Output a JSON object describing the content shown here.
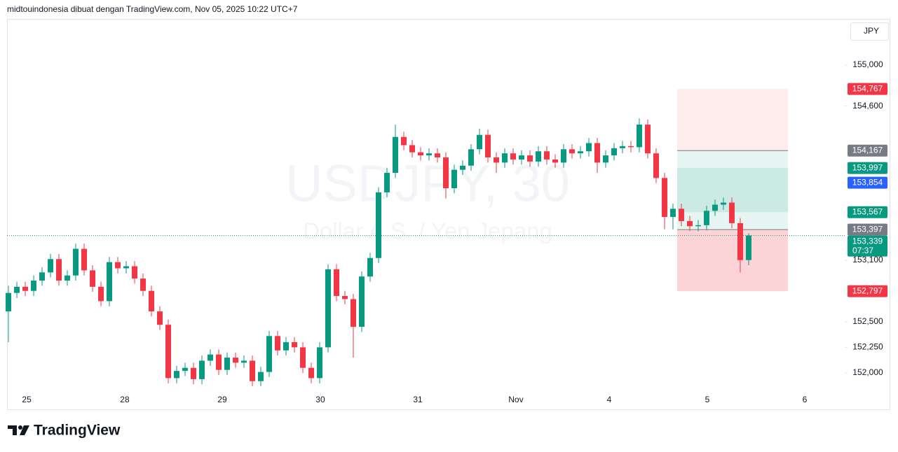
{
  "header": {
    "attribution": "midtouindonesia dibuat dengan TradingView.com, Nov 05, 2025 10:22 UTC+7",
    "currency": "JPY"
  },
  "footer": {
    "brand": "TradingView"
  },
  "chart_data": {
    "type": "candlestick",
    "title": "USDJPY, 30",
    "subtitle": "Dollar A.S. / Yen Jepang",
    "up_color": "#089981",
    "down_color": "#f23645",
    "open": [
      152.6,
      152.78,
      152.84,
      152.8,
      152.9,
      152.98,
      153.11,
      152.9,
      152.95,
      153.21,
      153.0,
      152.84,
      152.7,
      153.08,
      153.02,
      153.04,
      152.92,
      152.8,
      152.6,
      152.47,
      151.95,
      152.02,
      152.05,
      151.94,
      152.12,
      152.18,
      152.03,
      152.15,
      152.1,
      152.12,
      151.92,
      152.01,
      152.36,
      152.22,
      152.3,
      152.25,
      152.05,
      151.95,
      152.25,
      153.01,
      152.75,
      152.72,
      152.45,
      152.94,
      153.12,
      153.76,
      153.95,
      154.3,
      154.22,
      154.15,
      154.12,
      154.14,
      154.1,
      153.8,
      153.98,
      154.02,
      154.18,
      154.32,
      154.1,
      154.05,
      154.14,
      154.08,
      154.12,
      154.06,
      154.16,
      154.08,
      154.05,
      154.18,
      154.14,
      154.16,
      154.24,
      154.05,
      154.12,
      154.19,
      154.21,
      154.2,
      154.42,
      154.14,
      153.9,
      153.52,
      153.6,
      153.48,
      153.43,
      153.44,
      153.58,
      153.64,
      153.66,
      153.46,
      153.1
    ],
    "high": [
      152.85,
      152.89,
      152.89,
      152.95,
      153.03,
      153.16,
      153.16,
      153.0,
      153.26,
      153.26,
      153.05,
      152.89,
      153.13,
      153.13,
      153.09,
      153.09,
      152.97,
      152.85,
      152.65,
      152.52,
      152.07,
      152.1,
      152.1,
      152.17,
      152.23,
      152.23,
      152.2,
      152.2,
      152.17,
      152.17,
      152.06,
      152.41,
      152.41,
      152.35,
      152.35,
      152.3,
      152.1,
      152.3,
      153.06,
      153.06,
      152.8,
      152.77,
      152.99,
      153.17,
      153.81,
      154.0,
      154.42,
      154.35,
      154.27,
      154.2,
      154.19,
      154.19,
      154.15,
      154.03,
      154.07,
      154.23,
      154.38,
      154.37,
      154.15,
      154.19,
      154.19,
      154.17,
      154.17,
      154.21,
      154.21,
      154.13,
      154.23,
      154.23,
      154.21,
      154.29,
      154.29,
      154.17,
      154.24,
      154.26,
      154.26,
      154.48,
      154.47,
      154.19,
      153.95,
      153.65,
      153.65,
      153.53,
      153.49,
      153.63,
      153.69,
      153.71,
      153.71,
      153.51,
      153.36
    ],
    "low": [
      152.3,
      152.73,
      152.75,
      152.75,
      152.85,
      152.93,
      152.85,
      152.85,
      152.9,
      152.95,
      152.79,
      152.65,
      152.65,
      152.97,
      152.97,
      152.87,
      152.75,
      152.55,
      152.42,
      151.9,
      151.9,
      151.97,
      151.89,
      151.89,
      152.07,
      151.98,
      151.98,
      152.05,
      152.05,
      151.87,
      151.87,
      151.96,
      152.17,
      152.17,
      152.2,
      152.0,
      151.9,
      151.9,
      152.2,
      152.7,
      152.67,
      152.15,
      152.4,
      152.89,
      153.07,
      153.71,
      153.9,
      154.17,
      154.1,
      154.07,
      154.07,
      154.05,
      153.7,
      153.75,
      153.93,
      153.97,
      154.13,
      154.05,
      153.95,
      154.0,
      154.03,
      154.03,
      154.01,
      154.01,
      154.03,
      154.0,
      154.0,
      154.09,
      154.09,
      154.11,
      153.95,
      154.0,
      154.07,
      154.14,
      154.15,
      154.15,
      154.09,
      153.85,
      153.4,
      153.4,
      153.43,
      153.38,
      153.38,
      153.39,
      153.53,
      153.59,
      153.41,
      152.98,
      153.05
    ],
    "close": [
      152.78,
      152.84,
      152.8,
      152.9,
      152.98,
      153.11,
      152.9,
      152.95,
      153.21,
      153.0,
      152.84,
      152.7,
      153.08,
      153.02,
      153.04,
      152.92,
      152.8,
      152.6,
      152.47,
      151.95,
      152.02,
      152.05,
      151.94,
      152.12,
      152.18,
      152.03,
      152.15,
      152.1,
      152.12,
      151.92,
      152.01,
      152.36,
      152.22,
      152.3,
      152.25,
      152.05,
      151.95,
      152.25,
      153.01,
      152.75,
      152.72,
      152.45,
      152.94,
      153.12,
      153.76,
      153.95,
      154.3,
      154.22,
      154.15,
      154.12,
      154.14,
      154.1,
      153.8,
      153.98,
      154.02,
      154.18,
      154.32,
      154.1,
      154.05,
      154.14,
      154.08,
      154.12,
      154.06,
      154.16,
      154.08,
      154.05,
      154.18,
      154.14,
      154.16,
      154.24,
      154.05,
      154.12,
      154.19,
      154.21,
      154.2,
      154.42,
      154.14,
      153.9,
      153.52,
      153.6,
      153.48,
      153.43,
      153.44,
      153.58,
      153.64,
      153.66,
      153.46,
      153.1,
      153.339
    ],
    "xlim": [
      -0.17,
      99.42
    ],
    "xticks": [
      {
        "value": 2.17,
        "label": "25"
      },
      {
        "value": 13.83,
        "label": "28"
      },
      {
        "value": 25.42,
        "label": "29"
      },
      {
        "value": 37.08,
        "label": "30"
      },
      {
        "value": 48.67,
        "label": "31"
      },
      {
        "value": 60.33,
        "label": "Nov"
      },
      {
        "value": 71.42,
        "label": "4"
      },
      {
        "value": 83.08,
        "label": "5"
      },
      {
        "value": 94.67,
        "label": "6"
      }
    ],
    "ylim": [
      151.83,
      155.45
    ],
    "yticks": [
      {
        "value": 155,
        "label": "155,000"
      },
      {
        "value": 154.6,
        "label": "154,600"
      },
      {
        "value": 153.1,
        "label": "153,100"
      },
      {
        "value": 152.5,
        "label": "152,500"
      },
      {
        "value": 152.25,
        "label": "152,250"
      },
      {
        "value": 152,
        "label": "152,000"
      }
    ],
    "zones": [
      {
        "from": 154.767,
        "to": 154.167,
        "color": "rgba(242,54,69,0.10)"
      },
      {
        "from": 154.167,
        "to": 153.397,
        "color": "rgba(8,153,129,0.10)"
      },
      {
        "from": 153.997,
        "to": 153.567,
        "color": "rgba(8,153,129,0.12)"
      },
      {
        "from": 153.397,
        "to": 152.797,
        "color": "rgba(242,54,69,0.22)"
      }
    ],
    "level_lines": [
      {
        "value": 154.167,
        "color": "#787b86"
      },
      {
        "value": 153.397,
        "color": "#787b86"
      }
    ],
    "price_labels": [
      {
        "value": 154.767,
        "label": "154,767",
        "color": "#f23645"
      },
      {
        "value": 154.167,
        "label": "154,167",
        "color": "#787b86"
      },
      {
        "value": 153.997,
        "label": "153,997",
        "color": "#089981"
      },
      {
        "value": 153.854,
        "label": "153,854",
        "color": "#2962ff"
      },
      {
        "value": 153.567,
        "label": "153,567",
        "color": "#089981"
      },
      {
        "value": 153.397,
        "label": "153,397",
        "color": "#787b86"
      },
      {
        "value": 153.339,
        "label": "153,339",
        "color": "#089981",
        "countdown": "07:37"
      },
      {
        "value": 152.797,
        "label": "152,797",
        "color": "#f23645"
      }
    ],
    "last_price_color": "#089981"
  }
}
